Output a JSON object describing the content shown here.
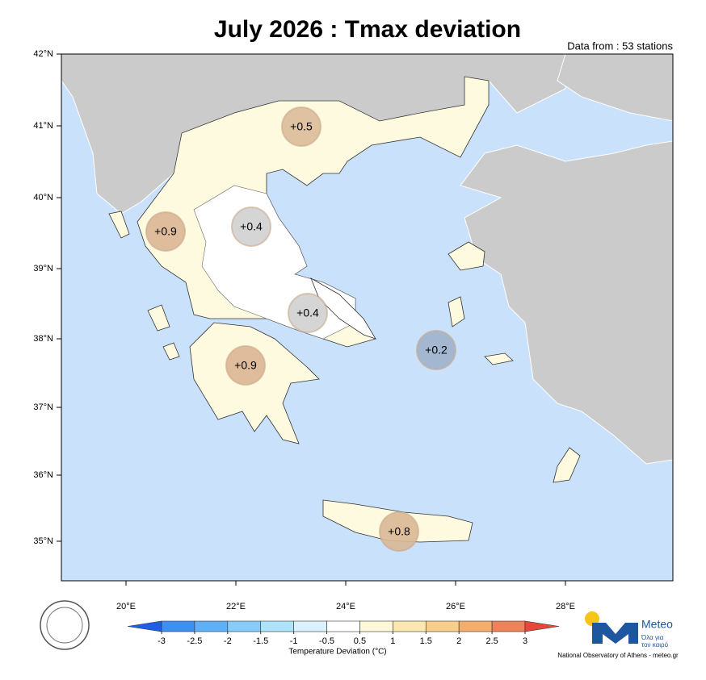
{
  "header": {
    "title": "July 2026 : Tmax deviation",
    "source": "Data from : 53 stations"
  },
  "map": {
    "lat_labels": [
      "42°N",
      "41°N",
      "40°N",
      "39°N",
      "38°N",
      "37°N",
      "36°N",
      "35°N"
    ],
    "lon_labels": [
      "20°E",
      "22°E",
      "24°E",
      "26°E",
      "28°E"
    ],
    "stations": [
      "+0.5",
      "+0.9",
      "+0.4",
      "+0.4",
      "+0.9",
      "+0.2",
      "+0.8"
    ]
  },
  "colorbar": {
    "ticks": [
      -3,
      -2.5,
      -2,
      -1.5,
      -1,
      -0.5,
      0.5,
      1,
      1.5,
      2,
      2.5,
      3
    ],
    "colors": [
      "#1f5fe8",
      "#3d8ff2",
      "#5fb0f6",
      "#86ccf9",
      "#aee3fb",
      "#d8f3fd",
      "#ffffff",
      "#fdf8d8",
      "#fbe8b0",
      "#f8cf8a",
      "#f4ad6c",
      "#ef8258",
      "#e8483c"
    ],
    "label": "Temperature Deviation (°C)"
  },
  "logo": {
    "name": "Meteo",
    "tagline": [
      "Όλα για",
      "τον καιρό"
    ]
  },
  "footer": {
    "credit": "National Observatory of Athens - meteo.gr"
  }
}
